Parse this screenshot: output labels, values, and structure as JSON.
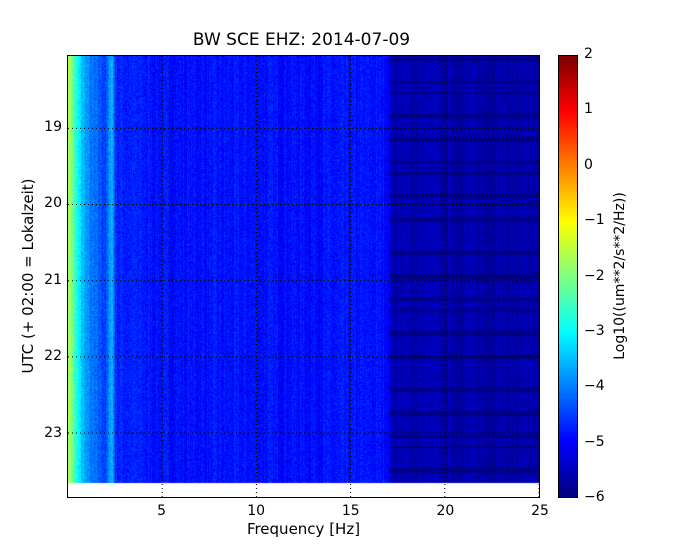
{
  "chart_data": {
    "type": "heatmap",
    "title": "BW SCE EHZ: 2014-07-09",
    "xlabel": "Frequency [Hz]",
    "ylabel": "UTC (+ 02:00 = Lokalzeit)",
    "colorbar_label": "Log10((um**2/s**2/Hz))",
    "xlim": [
      0,
      25
    ],
    "ylim": [
      23.84,
      18.05
    ],
    "data_time_end": 23.65,
    "clim": [
      -6,
      2
    ],
    "colormap": "jet",
    "grid": true,
    "xticks": [
      "5",
      "10",
      "15",
      "20",
      "25"
    ],
    "yticks": [
      "19",
      "20",
      "21",
      "22",
      "23"
    ],
    "cticks": [
      "2",
      "1",
      "0",
      "−1",
      "−2",
      "−3",
      "−4",
      "−5",
      "−6"
    ],
    "mean_profile": {
      "frequency_hz": [
        0.0,
        0.15,
        0.4,
        0.8,
        1.2,
        2.0,
        2.3,
        2.5,
        5,
        10,
        16.9,
        17.2,
        25
      ],
      "log10_psd": [
        -1.6,
        -1.8,
        -2.8,
        -3.6,
        -4.1,
        -4.5,
        -3.4,
        -4.7,
        -4.9,
        -4.9,
        -4.9,
        -5.6,
        -5.7
      ]
    }
  }
}
